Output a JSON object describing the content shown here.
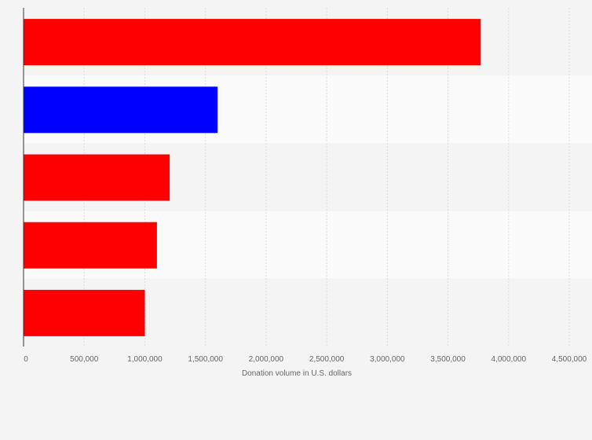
{
  "chart_data": {
    "type": "bar",
    "orientation": "horizontal",
    "categories": [
      "",
      "",
      "",
      "",
      ""
    ],
    "values": [
      3770000,
      1600000,
      1205000,
      1100000,
      1000000
    ],
    "bar_colors": [
      "#ff0000",
      "#0000ff",
      "#ff0000",
      "#ff0000",
      "#ff0000"
    ],
    "xlabel": "Donation volume in U.S. dollars",
    "ylabel": "",
    "xlim": [
      0,
      4500000
    ],
    "xticks": [
      0,
      500000,
      1000000,
      1500000,
      2000000,
      2500000,
      3000000,
      3500000,
      4000000,
      4500000
    ],
    "xtick_labels": [
      "0",
      "500,000",
      "1,000,000",
      "1,500,000",
      "2,000,000",
      "2,500,000",
      "3,000,000",
      "3,500,000",
      "4,000,000",
      "4,500,000"
    ],
    "grid": true,
    "legend": "none"
  },
  "colors": {
    "background": "#f4f4f4",
    "band_light": "#fafafa",
    "grid": "#dddddd",
    "axis": "#333333",
    "text": "#666666"
  }
}
